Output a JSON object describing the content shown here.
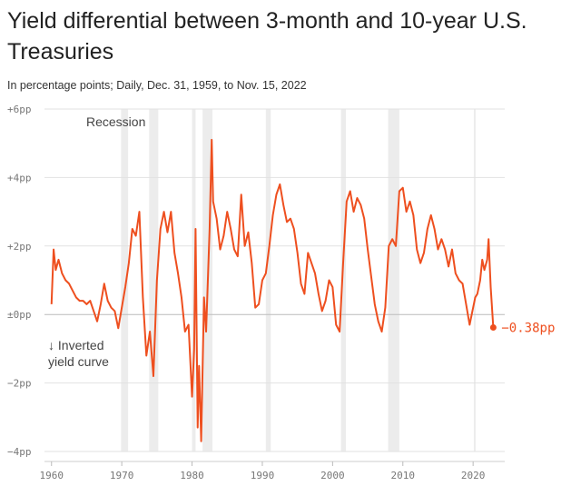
{
  "chart_data": {
    "type": "line",
    "title": "Yield differential between 3-month and 10-year U.S. Treasuries",
    "subtitle": "In percentage points; Daily, Dec. 31, 1959, to Nov. 15, 2022",
    "annotations": {
      "recession": "Recession",
      "inverted": [
        "↓ Inverted",
        "yield curve"
      ]
    },
    "color": "#ee4f1f",
    "recession_color": "#ececec",
    "recessions": [
      [
        1969.9,
        1970.9
      ],
      [
        1973.9,
        1975.2
      ],
      [
        1980.0,
        1980.5
      ],
      [
        1981.5,
        1982.9
      ],
      [
        1990.5,
        1991.2
      ],
      [
        2001.2,
        2001.9
      ],
      [
        2007.9,
        2009.5
      ],
      [
        2020.1,
        2020.35
      ]
    ],
    "x": [
      1960.0,
      1960.3,
      1960.6,
      1961.0,
      1961.5,
      1962.0,
      1962.5,
      1963.0,
      1963.5,
      1964.0,
      1964.5,
      1965.0,
      1965.5,
      1966.0,
      1966.5,
      1967.0,
      1967.5,
      1968.0,
      1968.5,
      1969.0,
      1969.5,
      1970.0,
      1970.5,
      1971.0,
      1971.5,
      1972.0,
      1972.5,
      1973.0,
      1973.5,
      1974.0,
      1974.5,
      1975.0,
      1975.5,
      1976.0,
      1976.5,
      1977.0,
      1977.5,
      1978.0,
      1978.5,
      1979.0,
      1979.5,
      1980.0,
      1980.3,
      1980.5,
      1980.8,
      1981.0,
      1981.3,
      1981.7,
      1982.0,
      1982.5,
      1982.8,
      1983.0,
      1983.5,
      1984.0,
      1984.5,
      1985.0,
      1985.5,
      1986.0,
      1986.5,
      1987.0,
      1987.5,
      1988.0,
      1988.5,
      1989.0,
      1989.5,
      1990.0,
      1990.5,
      1991.0,
      1991.5,
      1992.0,
      1992.5,
      1993.0,
      1993.5,
      1994.0,
      1994.5,
      1995.0,
      1995.5,
      1996.0,
      1996.5,
      1997.0,
      1997.5,
      1998.0,
      1998.5,
      1999.0,
      1999.5,
      2000.0,
      2000.5,
      2001.0,
      2001.5,
      2002.0,
      2002.5,
      2003.0,
      2003.5,
      2004.0,
      2004.5,
      2005.0,
      2005.5,
      2006.0,
      2006.5,
      2007.0,
      2007.5,
      2008.0,
      2008.5,
      2009.0,
      2009.5,
      2010.0,
      2010.5,
      2011.0,
      2011.5,
      2012.0,
      2012.5,
      2013.0,
      2013.5,
      2014.0,
      2014.5,
      2015.0,
      2015.5,
      2016.0,
      2016.5,
      2017.0,
      2017.5,
      2018.0,
      2018.5,
      2019.0,
      2019.5,
      2020.0,
      2020.3,
      2020.6,
      2021.0,
      2021.3,
      2021.6,
      2022.0,
      2022.2,
      2022.5,
      2022.87
    ],
    "values": [
      0.3,
      1.9,
      1.3,
      1.6,
      1.2,
      1.0,
      0.9,
      0.7,
      0.5,
      0.4,
      0.4,
      0.3,
      0.4,
      0.1,
      -0.2,
      0.3,
      0.9,
      0.4,
      0.2,
      0.1,
      -0.4,
      0.2,
      0.8,
      1.5,
      2.5,
      2.3,
      3.0,
      0.5,
      -1.2,
      -0.5,
      -1.8,
      1.0,
      2.5,
      3.0,
      2.4,
      3.0,
      1.8,
      1.2,
      0.5,
      -0.5,
      -0.3,
      -2.4,
      -1.0,
      2.5,
      -3.3,
      -1.5,
      -3.7,
      0.5,
      -0.5,
      2.5,
      5.1,
      3.3,
      2.8,
      1.9,
      2.3,
      3.0,
      2.5,
      1.9,
      1.7,
      3.5,
      2.0,
      2.4,
      1.5,
      0.2,
      0.3,
      1.0,
      1.2,
      2.0,
      2.9,
      3.5,
      3.8,
      3.2,
      2.7,
      2.8,
      2.5,
      1.8,
      0.9,
      0.6,
      1.8,
      1.5,
      1.2,
      0.6,
      0.1,
      0.4,
      1.0,
      0.8,
      -0.3,
      -0.5,
      1.5,
      3.3,
      3.6,
      3.0,
      3.4,
      3.2,
      2.8,
      1.9,
      1.1,
      0.3,
      -0.2,
      -0.5,
      0.2,
      2.0,
      2.2,
      2.0,
      3.6,
      3.7,
      3.0,
      3.3,
      2.9,
      1.9,
      1.5,
      1.8,
      2.5,
      2.9,
      2.5,
      1.9,
      2.2,
      1.9,
      1.4,
      1.9,
      1.2,
      1.0,
      0.9,
      0.3,
      -0.3,
      0.2,
      0.5,
      0.6,
      1.0,
      1.6,
      1.3,
      1.6,
      2.2,
      0.8,
      -0.38
    ],
    "end_label": "−0.38pp",
    "xlim": [
      1959,
      2024.5
    ],
    "ylim": [
      -4,
      6
    ],
    "xticks": [
      1960,
      1970,
      1980,
      1990,
      2000,
      2010,
      2020
    ],
    "yticks": [
      {
        "value": 6,
        "label": "+6pp"
      },
      {
        "value": 4,
        "label": "+4pp"
      },
      {
        "value": 2,
        "label": "+2pp"
      },
      {
        "value": 0,
        "label": "±0pp"
      },
      {
        "value": -2,
        "label": "−2pp"
      },
      {
        "value": -4,
        "label": "−4pp"
      }
    ],
    "grid": true
  }
}
